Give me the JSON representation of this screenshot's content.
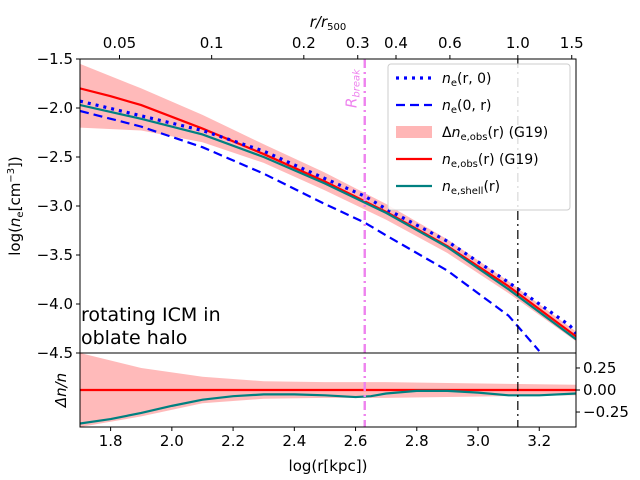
{
  "chart_data": [
    {
      "type": "line",
      "panel": "main",
      "xlabel": "",
      "ylabel": "log(n_e[cm^-3])",
      "xlim": [
        1.7,
        3.32
      ],
      "ylim": [
        -4.5,
        -1.5
      ],
      "yticks": [
        -4.5,
        -4.0,
        -3.5,
        -3.0,
        -2.5,
        -2.0,
        -1.5
      ],
      "ytick_labels": [
        "−4.5",
        "−4.0",
        "−3.5",
        "−3.0",
        "−2.5",
        "−2.0",
        "−1.5"
      ],
      "top_axis": {
        "label": "r/r500",
        "ticks": [
          0.05,
          0.1,
          0.2,
          0.3,
          0.4,
          0.6,
          1.0,
          1.5
        ],
        "tick_labels": [
          "0.05",
          "0.1",
          "0.2",
          "0.3",
          "0.4",
          "0.6",
          "1.0",
          "1.5"
        ],
        "log_r500_kpc": 3.13
      },
      "annotation": [
        "rotating ICM in",
        " oblate halo"
      ],
      "vlines": [
        {
          "name": "R_break",
          "label": "R_break",
          "x": 2.63,
          "color": "#ee82ee",
          "style": "dashdot"
        },
        {
          "name": "r500",
          "x": 3.13,
          "color": "#000000",
          "style": "dashdot"
        }
      ],
      "legend_position": "upper right",
      "series": [
        {
          "name": "ne_r0",
          "legend": "n_e(r, 0)",
          "color": "#0000ff",
          "style": "dotted",
          "x": [
            1.7,
            1.9,
            2.1,
            2.3,
            2.5,
            2.63,
            2.7,
            2.9,
            3.1,
            3.3,
            3.32
          ],
          "y": [
            -1.93,
            -2.08,
            -2.23,
            -2.44,
            -2.72,
            -2.9,
            -3.03,
            -3.36,
            -3.78,
            -4.22,
            -4.3
          ]
        },
        {
          "name": "ne_0r",
          "legend": "n_e(0, r)",
          "color": "#0000ff",
          "style": "dashed",
          "x": [
            1.7,
            1.9,
            2.1,
            2.3,
            2.5,
            2.63,
            2.7,
            2.9,
            3.1,
            3.2
          ],
          "y": [
            -2.03,
            -2.19,
            -2.4,
            -2.67,
            -2.98,
            -3.17,
            -3.3,
            -3.66,
            -4.12,
            -4.48
          ]
        },
        {
          "name": "ne_obs_band",
          "legend": "Δn_e,obs(r) (G19)",
          "color": "#ffb6b6",
          "style": "band",
          "x": [
            1.7,
            1.9,
            2.1,
            2.3,
            2.5,
            2.7,
            2.9,
            3.1,
            3.32
          ],
          "upper": [
            -1.55,
            -1.8,
            -2.07,
            -2.37,
            -2.66,
            -2.98,
            -3.34,
            -3.77,
            -4.28
          ],
          "lower": [
            -2.2,
            -2.23,
            -2.35,
            -2.56,
            -2.84,
            -3.14,
            -3.48,
            -3.89,
            -4.38
          ]
        },
        {
          "name": "ne_obs",
          "legend": "n_e,obs(r) (G19)",
          "color": "#ff0000",
          "style": "solid",
          "x": [
            1.7,
            1.8,
            1.9,
            2.1,
            2.3,
            2.5,
            2.7,
            2.9,
            3.1,
            3.32
          ],
          "y": [
            -1.8,
            -1.88,
            -1.97,
            -2.21,
            -2.47,
            -2.75,
            -3.06,
            -3.41,
            -3.82,
            -4.33
          ]
        },
        {
          "name": "ne_shell",
          "legend": "n_e,shell(r)",
          "color": "#008080",
          "style": "solid",
          "x": [
            1.7,
            1.8,
            1.9,
            2.1,
            2.3,
            2.5,
            2.7,
            2.9,
            3.1,
            3.32
          ],
          "y": [
            -1.97,
            -2.04,
            -2.11,
            -2.27,
            -2.5,
            -2.77,
            -3.07,
            -3.42,
            -3.85,
            -4.36
          ]
        }
      ]
    },
    {
      "type": "line",
      "panel": "residual",
      "xlabel": "log(r[kpc])",
      "ylabel": "Δn/n",
      "xlim": [
        1.7,
        3.32
      ],
      "ylim": [
        -0.42,
        0.42
      ],
      "xticks": [
        1.8,
        2.0,
        2.2,
        2.4,
        2.6,
        2.8,
        3.0,
        3.2
      ],
      "xtick_labels": [
        "1.8",
        "2.0",
        "2.2",
        "2.4",
        "2.6",
        "2.8",
        "3.0",
        "3.2"
      ],
      "yticks": [
        0.25,
        0.0,
        -0.25
      ],
      "ytick_labels": [
        "0.25",
        "0.00",
        "−0.25"
      ],
      "series": [
        {
          "name": "band",
          "color": "#ffb6b6",
          "style": "band",
          "x": [
            1.7,
            1.9,
            2.1,
            2.3,
            2.5,
            2.7,
            2.9,
            3.1,
            3.32
          ],
          "upper": [
            0.42,
            0.25,
            0.15,
            0.1,
            0.09,
            0.09,
            0.08,
            0.07,
            0.06
          ],
          "lower": [
            -0.42,
            -0.3,
            -0.15,
            -0.1,
            -0.09,
            -0.09,
            -0.08,
            -0.07,
            -0.06
          ]
        },
        {
          "name": "zero",
          "color": "#ff0000",
          "style": "solid",
          "x": [
            1.7,
            3.32
          ],
          "y": [
            0.0,
            0.0
          ]
        },
        {
          "name": "shell_resid",
          "color": "#008080",
          "style": "solid",
          "x": [
            1.7,
            1.8,
            1.9,
            2.0,
            2.1,
            2.2,
            2.3,
            2.4,
            2.5,
            2.6,
            2.65,
            2.7,
            2.8,
            2.9,
            3.0,
            3.1,
            3.2,
            3.32
          ],
          "y": [
            -0.38,
            -0.33,
            -0.26,
            -0.18,
            -0.11,
            -0.07,
            -0.05,
            -0.05,
            -0.06,
            -0.08,
            -0.07,
            -0.04,
            -0.01,
            -0.01,
            -0.03,
            -0.06,
            -0.06,
            -0.04
          ]
        }
      ]
    }
  ]
}
